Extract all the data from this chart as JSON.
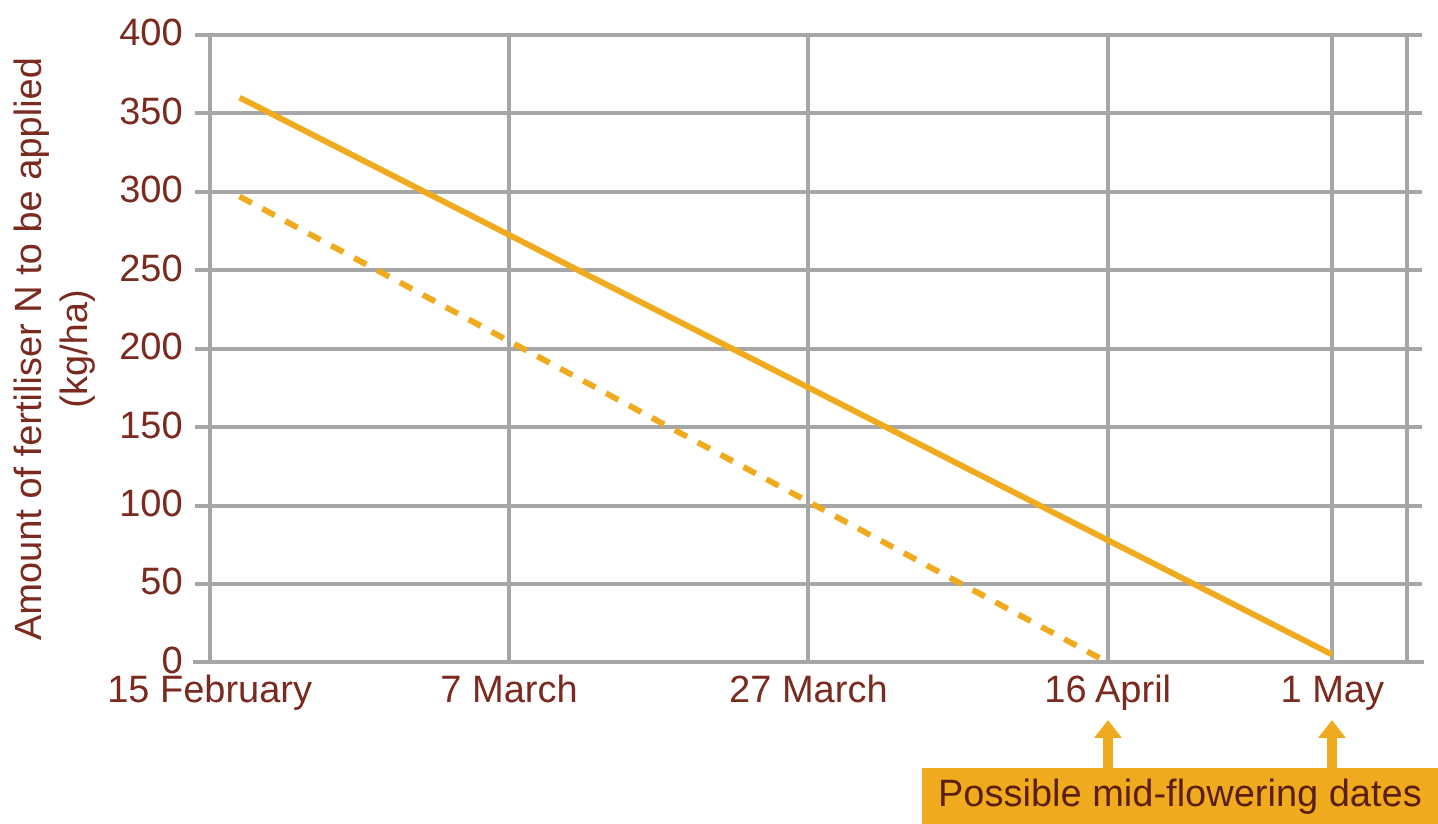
{
  "chart_data": {
    "type": "line",
    "ylabel": "Amount of fertiliser N to be applied (kg/ha)",
    "xlim": [
      "--02-14",
      "--05-07"
    ],
    "xticks": [
      {
        "value": "--02-15",
        "label": "15 February"
      },
      {
        "value": "--03-07",
        "label": "7 March"
      },
      {
        "value": "--03-27",
        "label": "27 March"
      },
      {
        "value": "--04-16",
        "label": "16 April"
      },
      {
        "value": "--05-01",
        "label": "1 May"
      },
      {
        "value": "--05-06",
        "label": null
      }
    ],
    "ylim": [
      0,
      400
    ],
    "yticks": [
      0,
      50,
      100,
      150,
      200,
      250,
      300,
      350,
      400
    ],
    "grid": true,
    "marker": "none",
    "series": [
      {
        "color": "#f0aa1e",
        "line_style": "solid",
        "x": [
          "--02-17",
          "--05-01"
        ],
        "values": [
          360,
          5
        ]
      },
      {
        "color": "#f0aa1e",
        "line_style": "dashed",
        "x": [
          "--02-17",
          "--04-16"
        ],
        "values": [
          297,
          0
        ]
      }
    ],
    "annotations": [
      "Possible mid-flowering dates"
    ]
  }
}
